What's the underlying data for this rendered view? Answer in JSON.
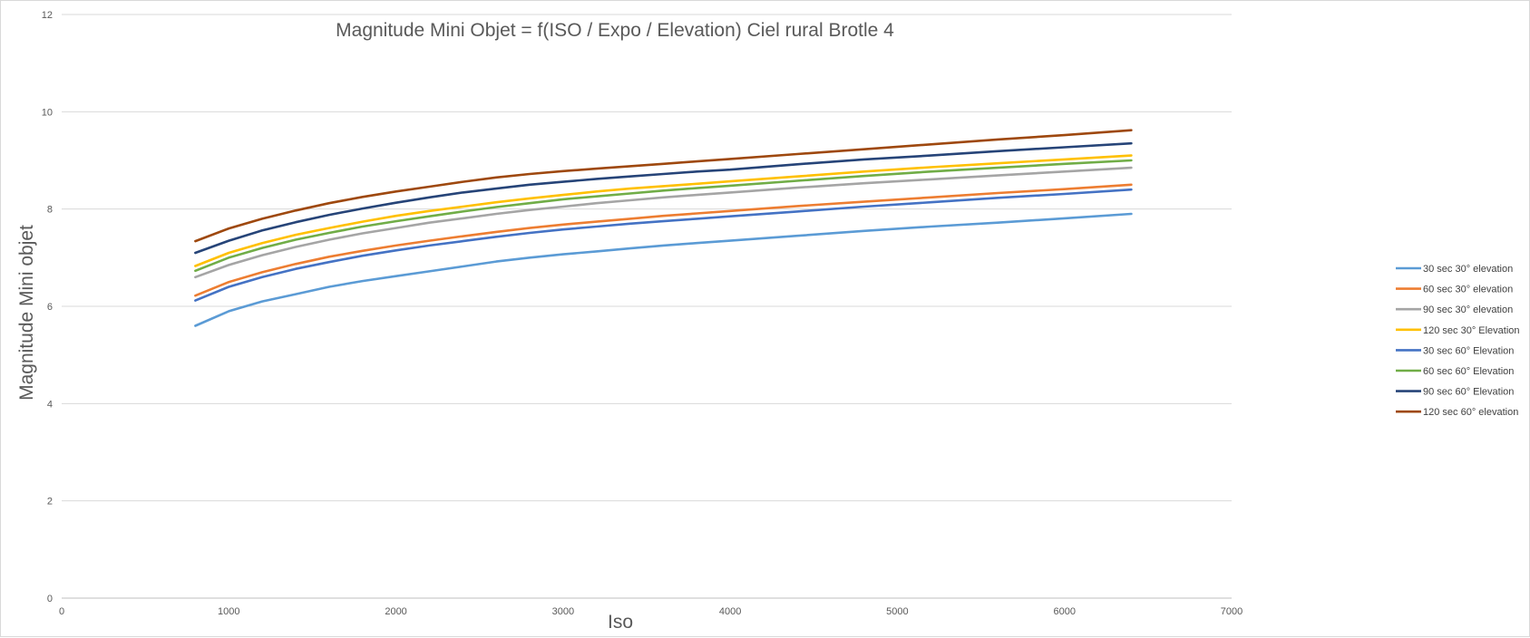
{
  "chart_data": {
    "type": "line",
    "title": "Magnitude Mini Objet = f(ISO / Expo / Elevation) Ciel rural Brotle 4",
    "xlabel": "Iso",
    "ylabel": "Magnitude Mini objet",
    "xlim": [
      0,
      7000
    ],
    "ylim": [
      0,
      12
    ],
    "xticks": [
      0,
      1000,
      2000,
      3000,
      4000,
      5000,
      6000,
      7000
    ],
    "yticks": [
      0,
      2,
      4,
      6,
      8,
      10,
      12
    ],
    "grid": true,
    "legend_position": "right",
    "x": [
      800,
      1000,
      1200,
      1400,
      1600,
      1800,
      2000,
      2200,
      2400,
      2600,
      2800,
      3000,
      3200,
      3400,
      3600,
      3800,
      4000,
      4400,
      4800,
      5200,
      5600,
      6000,
      6400
    ],
    "series": [
      {
        "name": "30 sec 30° elevation",
        "color": "#5B9BD5",
        "values": [
          5.6,
          5.9,
          6.1,
          6.25,
          6.4,
          6.52,
          6.62,
          6.72,
          6.82,
          6.92,
          7.0,
          7.07,
          7.13,
          7.19,
          7.25,
          7.3,
          7.35,
          7.45,
          7.55,
          7.64,
          7.72,
          7.81,
          7.9
        ]
      },
      {
        "name": "60 sec 30° elevation",
        "color": "#ED7D31",
        "values": [
          6.22,
          6.5,
          6.7,
          6.87,
          7.02,
          7.14,
          7.25,
          7.35,
          7.44,
          7.53,
          7.61,
          7.68,
          7.74,
          7.8,
          7.86,
          7.91,
          7.96,
          8.06,
          8.15,
          8.24,
          8.33,
          8.41,
          8.5
        ]
      },
      {
        "name": "90 sec 30° elevation",
        "color": "#A5A5A5",
        "values": [
          6.6,
          6.85,
          7.05,
          7.22,
          7.37,
          7.5,
          7.61,
          7.72,
          7.81,
          7.9,
          7.98,
          8.05,
          8.12,
          8.18,
          8.24,
          8.29,
          8.34,
          8.44,
          8.53,
          8.61,
          8.69,
          8.77,
          8.85
        ]
      },
      {
        "name": "120 sec 30° Elevation",
        "color": "#FFC000",
        "values": [
          6.83,
          7.1,
          7.3,
          7.47,
          7.61,
          7.74,
          7.86,
          7.96,
          8.05,
          8.14,
          8.22,
          8.29,
          8.36,
          8.42,
          8.47,
          8.52,
          8.57,
          8.67,
          8.77,
          8.86,
          8.94,
          9.02,
          9.1
        ]
      },
      {
        "name": "30 sec 60° Elevation",
        "color": "#4472C4",
        "values": [
          6.12,
          6.4,
          6.6,
          6.77,
          6.91,
          7.04,
          7.15,
          7.25,
          7.34,
          7.43,
          7.51,
          7.58,
          7.64,
          7.7,
          7.75,
          7.8,
          7.85,
          7.95,
          8.05,
          8.14,
          8.23,
          8.31,
          8.4
        ]
      },
      {
        "name": "60 sec 60° Elevation",
        "color": "#70AD47",
        "values": [
          6.73,
          7.0,
          7.2,
          7.37,
          7.51,
          7.64,
          7.75,
          7.85,
          7.95,
          8.04,
          8.12,
          8.2,
          8.26,
          8.32,
          8.38,
          8.43,
          8.48,
          8.58,
          8.68,
          8.77,
          8.85,
          8.93,
          9.0
        ]
      },
      {
        "name": "90 sec 60° Elevation",
        "color": "#264478",
        "values": [
          7.1,
          7.35,
          7.56,
          7.73,
          7.88,
          8.01,
          8.13,
          8.24,
          8.34,
          8.42,
          8.5,
          8.56,
          8.62,
          8.67,
          8.72,
          8.77,
          8.81,
          8.92,
          9.02,
          9.1,
          9.19,
          9.27,
          9.35
        ]
      },
      {
        "name": "120 sec 60° elevation",
        "color": "#9E480E",
        "values": [
          7.34,
          7.6,
          7.8,
          7.97,
          8.12,
          8.25,
          8.36,
          8.46,
          8.56,
          8.65,
          8.72,
          8.78,
          8.83,
          8.88,
          8.93,
          8.98,
          9.03,
          9.13,
          9.23,
          9.33,
          9.43,
          9.52,
          9.62
        ]
      }
    ]
  }
}
